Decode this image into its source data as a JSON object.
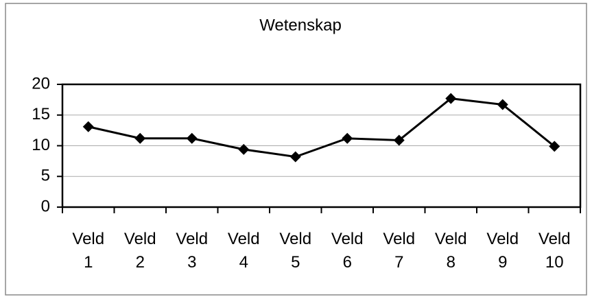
{
  "chart_data": {
    "type": "line",
    "title": "Wetenskap",
    "categories": [
      "Veld 1",
      "Veld 2",
      "Veld 3",
      "Veld 4",
      "Veld 5",
      "Veld 6",
      "Veld 7",
      "Veld 8",
      "Veld 9",
      "Veld 10"
    ],
    "values": [
      13.1,
      11.2,
      11.2,
      9.4,
      8.2,
      11.2,
      10.9,
      17.7,
      16.7,
      9.9
    ],
    "color": "#000000",
    "ylim": [
      0,
      20
    ],
    "yticks": [
      0,
      5,
      10,
      15,
      20
    ],
    "grid": true
  }
}
